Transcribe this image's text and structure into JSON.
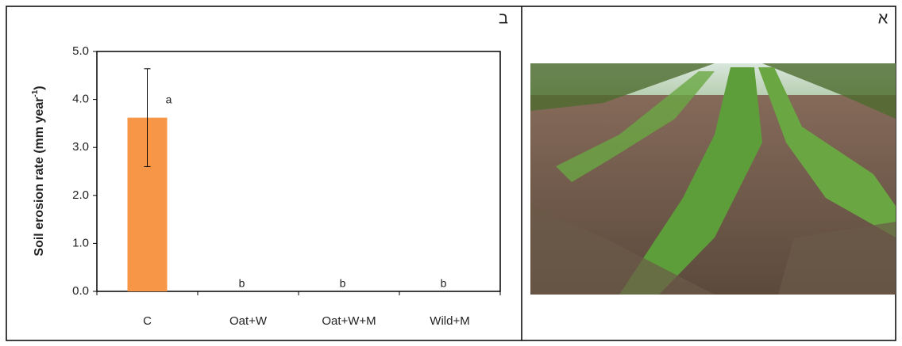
{
  "chart_data": {
    "type": "bar",
    "panel_label": "ב",
    "ylabel": "Soil erosion rate (mm year",
    "ylabel_sup": "-1",
    "ylabel_end": ")",
    "categories": [
      "C",
      "Oat+W",
      "Oat+W+M",
      "Wild+M"
    ],
    "values": [
      3.62,
      0,
      0,
      0
    ],
    "errors": [
      1.02,
      0,
      0,
      0
    ],
    "significance_labels": [
      "a",
      "b",
      "b",
      "b"
    ],
    "color": "#f79646",
    "ylim": [
      0,
      5
    ],
    "yticks": [
      {
        "value": 0,
        "label": "0.0"
      },
      {
        "value": 1,
        "label": "1.0"
      },
      {
        "value": 2,
        "label": "2.0"
      },
      {
        "value": 3,
        "label": "3.0"
      },
      {
        "value": 4,
        "label": "4.0"
      },
      {
        "value": 5,
        "label": "5.0"
      }
    ],
    "grid": false
  },
  "photo_panel": {
    "label": "א"
  }
}
